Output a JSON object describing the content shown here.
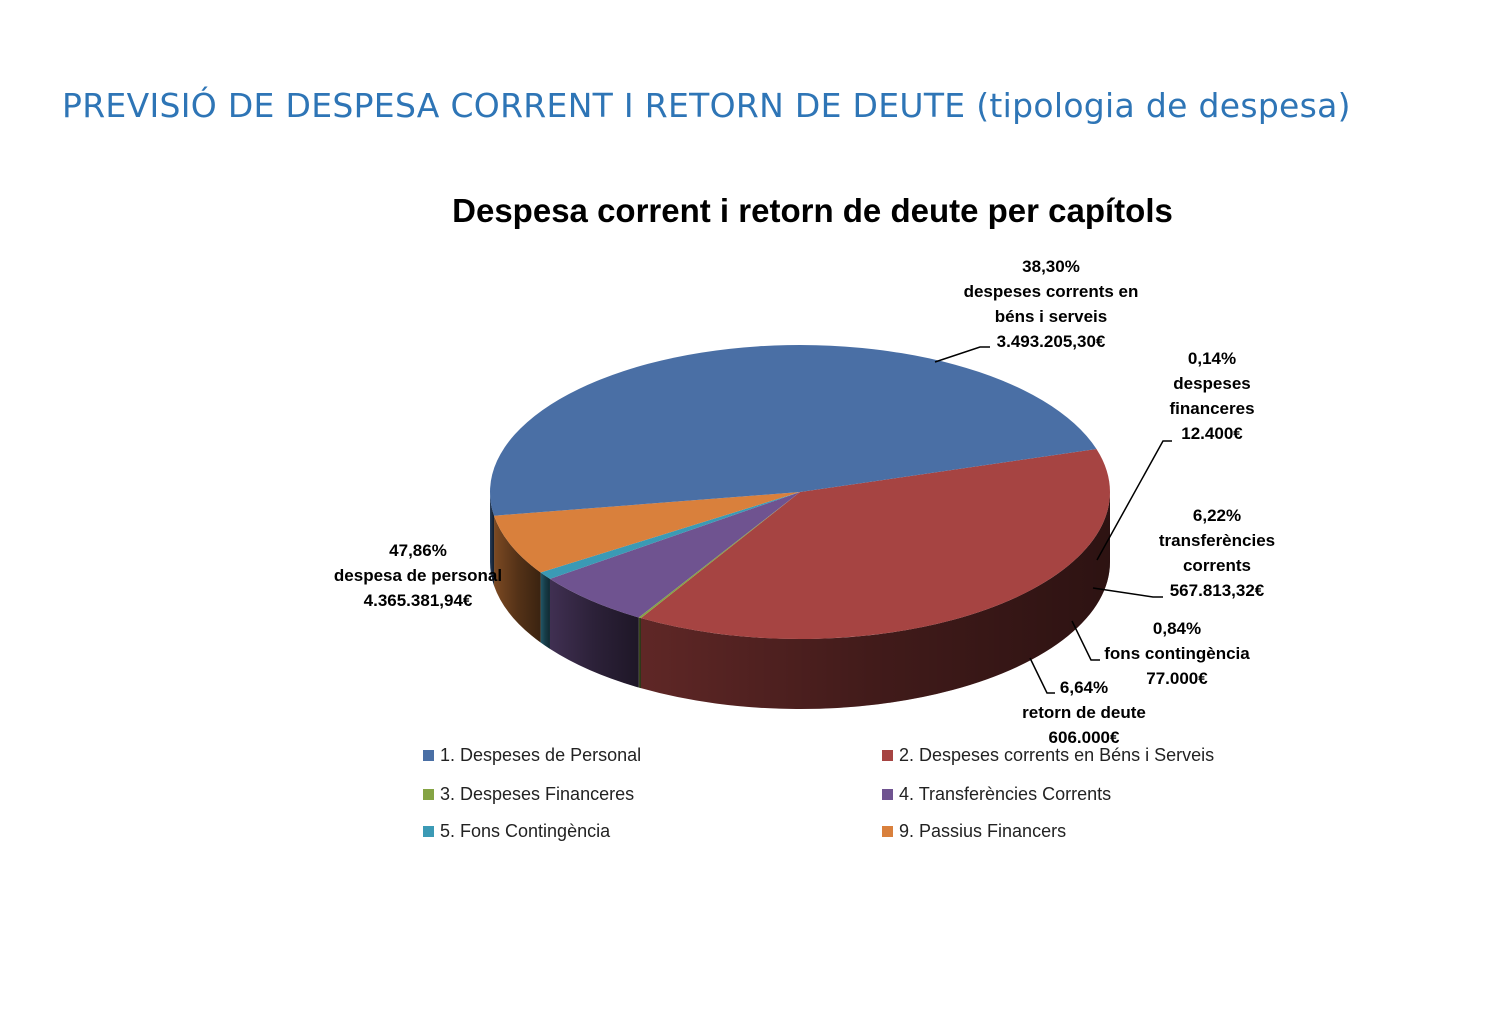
{
  "page_title": "PREVISIÓ DE DESPESA CORRENT I RETORN DE DEUTE (tipologia de despesa)",
  "chart_data": {
    "type": "pie",
    "title": "Despesa corrent i retorn de deute per capítols",
    "three_d": true,
    "legend_position": "bottom",
    "slices": [
      {
        "legend": "1. Despeses de Personal",
        "percent_label": "47,86%",
        "name_label": "despesa de personal",
        "amount_label": "4.365.381,94€",
        "value": 4365381.94,
        "color": "#4a6fa5"
      },
      {
        "legend": "2. Despeses corrents en Béns i Serveis",
        "percent_label": "38,30%",
        "name_label": [
          "despeses corrents en",
          "béns i serveis"
        ],
        "amount_label": "3.493.205,30€",
        "value": 3493205.3,
        "color": "#a64442"
      },
      {
        "legend": "3. Despeses Financeres",
        "percent_label": "0,14%",
        "name_label": [
          "despeses",
          "financeres"
        ],
        "amount_label": "12.400€",
        "value": 12400,
        "color": "#85a444"
      },
      {
        "legend": "4. Transferències Corrents",
        "percent_label": "6,22%",
        "name_label": [
          "transferències",
          "corrents"
        ],
        "amount_label": "567.813,32€",
        "value": 567813.32,
        "color": "#6f5390"
      },
      {
        "legend": "5. Fons Contingència",
        "percent_label": "0,84%",
        "name_label": "fons contingència",
        "amount_label": "77.000€",
        "value": 77000,
        "color": "#3b9ab5"
      },
      {
        "legend": "9. Passius Financers",
        "percent_label": "6,64%",
        "name_label": "retorn de deute",
        "amount_label": "606.000€",
        "value": 606000,
        "color": "#d9803c"
      }
    ]
  }
}
